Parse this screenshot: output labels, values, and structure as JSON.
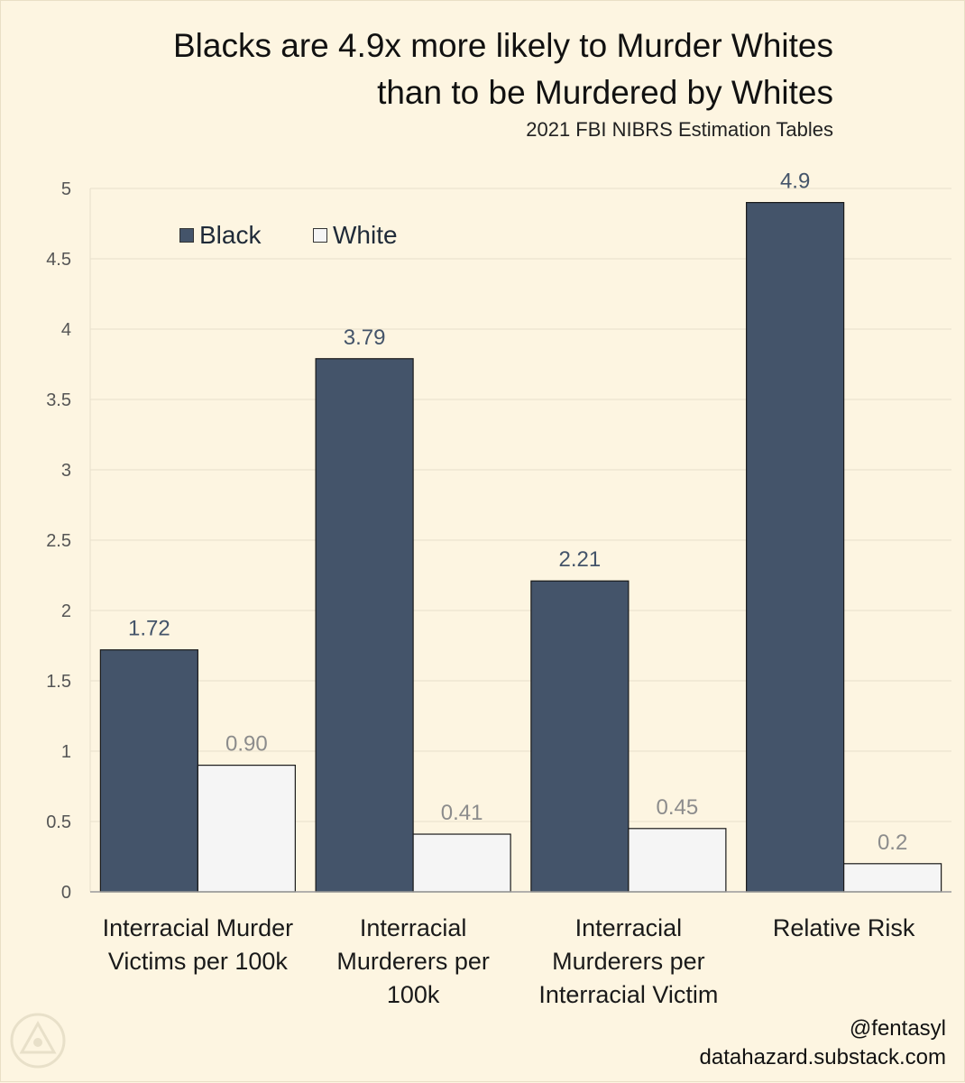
{
  "title_line1": "Blacks are 4.9x more likely to Murder Whites",
  "title_line2": "than to be Murdered by Whites",
  "subtitle": "2021 FBI NIBRS Estimation Tables",
  "credit_handle": "@fentasyl",
  "credit_site": "datahazard.substack.com",
  "colors": {
    "background": "#fdf5e1",
    "black_series": "#44546a",
    "white_series": "#f5f5f5",
    "black_label": "#44546a",
    "white_label": "#8c8c8c"
  },
  "chart_data": {
    "type": "bar",
    "categories": [
      [
        "Interracial Murder",
        "Victims per 100k"
      ],
      [
        "Interracial",
        "Murderers per",
        "100k"
      ],
      [
        "Interracial",
        "Murderers per",
        "Interracial Victim"
      ],
      [
        "Relative Risk"
      ]
    ],
    "series": [
      {
        "name": "Black",
        "values": [
          1.72,
          3.79,
          2.21,
          4.9
        ],
        "labels": [
          "1.72",
          "3.79",
          "2.21",
          "4.9"
        ]
      },
      {
        "name": "White",
        "values": [
          0.9,
          0.41,
          0.45,
          0.2
        ],
        "labels": [
          "0.90",
          "0.41",
          "0.45",
          "0.2"
        ]
      }
    ],
    "yticks": [
      "0",
      "0.5",
      "1",
      "1.5",
      "2",
      "2.5",
      "3",
      "3.5",
      "4",
      "4.5",
      "5"
    ],
    "ylim": [
      0,
      5
    ],
    "grid": true,
    "legend": "top-left"
  }
}
